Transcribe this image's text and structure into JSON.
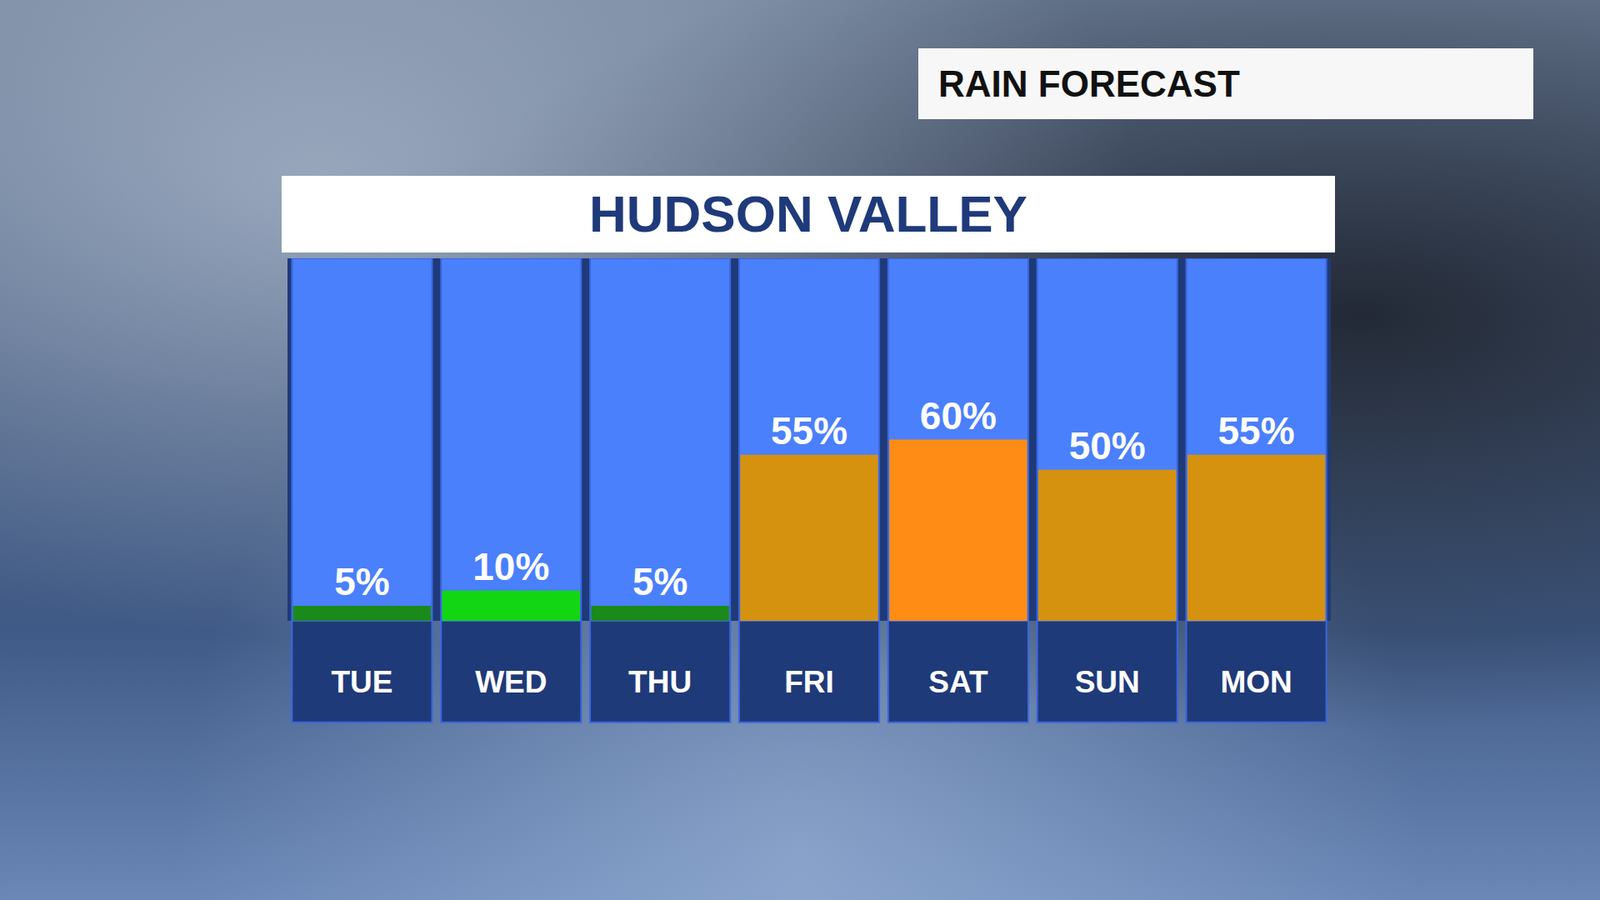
{
  "chart_data": {
    "type": "bar",
    "title": "HUDSON VALLEY",
    "subtitle": "RAIN FORECAST",
    "categories": [
      "TUE",
      "WED",
      "THU",
      "FRI",
      "SAT",
      "SUN",
      "MON"
    ],
    "values": [
      5,
      10,
      5,
      55,
      60,
      50,
      55
    ],
    "value_labels": [
      "5%",
      "10%",
      "5%",
      "55%",
      "60%",
      "50%",
      "55%"
    ],
    "colors": [
      "#1a8a1a",
      "#11d611",
      "#1a8a1a",
      "#d4920f",
      "#ff8c14",
      "#d4920f",
      "#d4920f"
    ],
    "ylim": [
      0,
      120
    ],
    "grid": false,
    "data_labels": true,
    "tick_labels": "x"
  }
}
